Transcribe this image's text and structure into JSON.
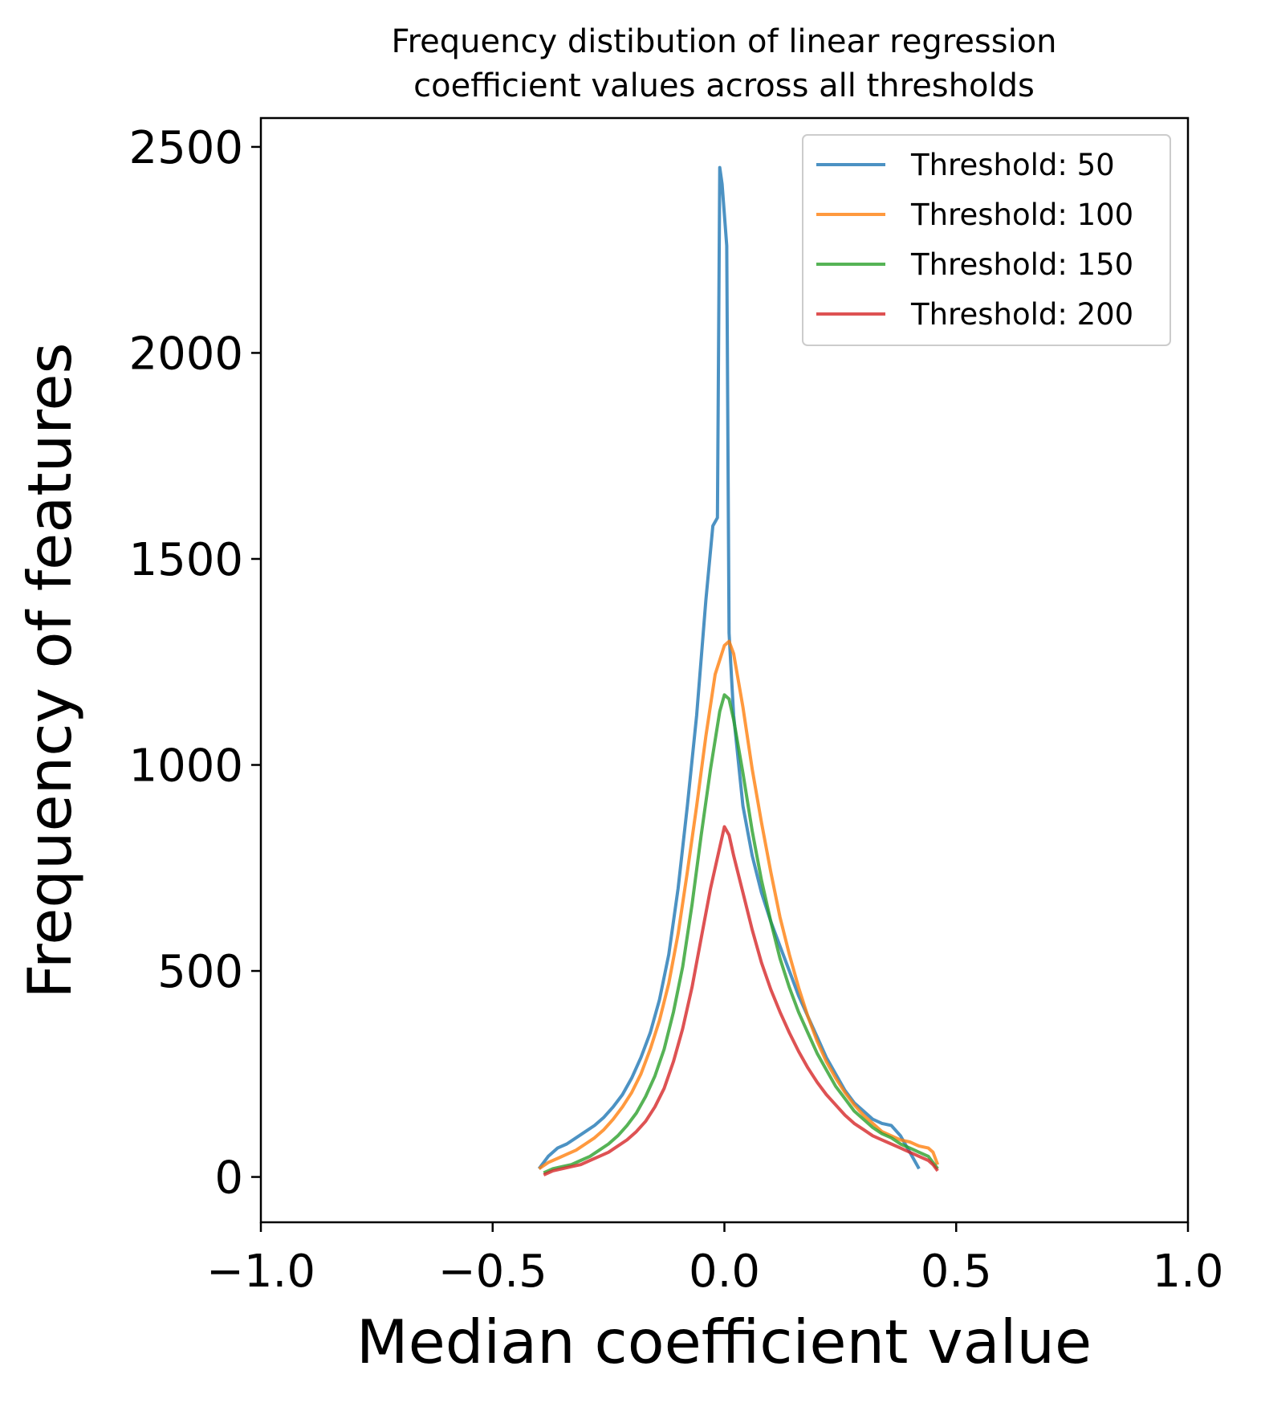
{
  "chart_data": {
    "type": "line",
    "title": [
      "Frequency distibution of linear regression",
      "coefficient values across all thresholds"
    ],
    "xlabel": "Median coefficient value",
    "ylabel": "Frequency of features",
    "xlim": [
      -1.0,
      1.0
    ],
    "ylim": [
      -110,
      2570
    ],
    "xticks": [
      -1.0,
      -0.5,
      0.0,
      0.5,
      1.0
    ],
    "xtick_labels": [
      "−1.0",
      "−0.5",
      "0.0",
      "0.5",
      "1.0"
    ],
    "yticks": [
      0,
      500,
      1000,
      1500,
      2000,
      2500
    ],
    "ytick_labels": [
      "0",
      "500",
      "1000",
      "1500",
      "2000",
      "2500"
    ],
    "grid": false,
    "legend_position": "top-right",
    "series": [
      {
        "name": "Threshold: 50",
        "color": "#1f77b4",
        "points": [
          [
            -0.4,
            20
          ],
          [
            -0.38,
            50
          ],
          [
            -0.36,
            70
          ],
          [
            -0.34,
            80
          ],
          [
            -0.32,
            95
          ],
          [
            -0.3,
            110
          ],
          [
            -0.28,
            125
          ],
          [
            -0.26,
            145
          ],
          [
            -0.24,
            170
          ],
          [
            -0.22,
            200
          ],
          [
            -0.2,
            240
          ],
          [
            -0.18,
            290
          ],
          [
            -0.16,
            350
          ],
          [
            -0.14,
            430
          ],
          [
            -0.12,
            540
          ],
          [
            -0.1,
            700
          ],
          [
            -0.08,
            900
          ],
          [
            -0.06,
            1120
          ],
          [
            -0.04,
            1400
          ],
          [
            -0.025,
            1580
          ],
          [
            -0.015,
            1600
          ],
          [
            -0.01,
            2450
          ],
          [
            -0.005,
            2410
          ],
          [
            0.005,
            2260
          ],
          [
            0.01,
            1320
          ],
          [
            0.02,
            1120
          ],
          [
            0.04,
            900
          ],
          [
            0.06,
            780
          ],
          [
            0.08,
            690
          ],
          [
            0.1,
            620
          ],
          [
            0.12,
            560
          ],
          [
            0.14,
            500
          ],
          [
            0.16,
            440
          ],
          [
            0.18,
            390
          ],
          [
            0.2,
            340
          ],
          [
            0.22,
            290
          ],
          [
            0.24,
            250
          ],
          [
            0.26,
            210
          ],
          [
            0.28,
            180
          ],
          [
            0.3,
            160
          ],
          [
            0.32,
            140
          ],
          [
            0.34,
            130
          ],
          [
            0.36,
            125
          ],
          [
            0.38,
            100
          ],
          [
            0.4,
            60
          ],
          [
            0.42,
            20
          ]
        ]
      },
      {
        "name": "Threshold: 100",
        "color": "#ff7f0e",
        "points": [
          [
            -0.4,
            20
          ],
          [
            -0.38,
            35
          ],
          [
            -0.36,
            45
          ],
          [
            -0.34,
            55
          ],
          [
            -0.32,
            65
          ],
          [
            -0.3,
            80
          ],
          [
            -0.28,
            95
          ],
          [
            -0.26,
            115
          ],
          [
            -0.24,
            140
          ],
          [
            -0.22,
            170
          ],
          [
            -0.2,
            205
          ],
          [
            -0.18,
            250
          ],
          [
            -0.16,
            310
          ],
          [
            -0.14,
            380
          ],
          [
            -0.12,
            470
          ],
          [
            -0.1,
            590
          ],
          [
            -0.08,
            740
          ],
          [
            -0.06,
            900
          ],
          [
            -0.04,
            1070
          ],
          [
            -0.02,
            1220
          ],
          [
            0.0,
            1290
          ],
          [
            0.01,
            1300
          ],
          [
            0.02,
            1270
          ],
          [
            0.04,
            1140
          ],
          [
            0.06,
            990
          ],
          [
            0.08,
            860
          ],
          [
            0.1,
            740
          ],
          [
            0.12,
            630
          ],
          [
            0.14,
            540
          ],
          [
            0.16,
            460
          ],
          [
            0.18,
            390
          ],
          [
            0.2,
            330
          ],
          [
            0.22,
            280
          ],
          [
            0.24,
            240
          ],
          [
            0.26,
            205
          ],
          [
            0.28,
            175
          ],
          [
            0.3,
            150
          ],
          [
            0.32,
            130
          ],
          [
            0.34,
            110
          ],
          [
            0.36,
            100
          ],
          [
            0.38,
            90
          ],
          [
            0.4,
            85
          ],
          [
            0.42,
            75
          ],
          [
            0.44,
            70
          ],
          [
            0.45,
            60
          ],
          [
            0.46,
            30
          ]
        ]
      },
      {
        "name": "Threshold: 150",
        "color": "#2ca02c",
        "points": [
          [
            -0.39,
            10
          ],
          [
            -0.37,
            20
          ],
          [
            -0.35,
            25
          ],
          [
            -0.33,
            30
          ],
          [
            -0.31,
            40
          ],
          [
            -0.29,
            50
          ],
          [
            -0.27,
            65
          ],
          [
            -0.25,
            80
          ],
          [
            -0.23,
            100
          ],
          [
            -0.21,
            125
          ],
          [
            -0.19,
            155
          ],
          [
            -0.17,
            195
          ],
          [
            -0.15,
            245
          ],
          [
            -0.13,
            310
          ],
          [
            -0.11,
            400
          ],
          [
            -0.09,
            510
          ],
          [
            -0.07,
            660
          ],
          [
            -0.05,
            830
          ],
          [
            -0.03,
            990
          ],
          [
            -0.01,
            1130
          ],
          [
            0.0,
            1170
          ],
          [
            0.01,
            1160
          ],
          [
            0.02,
            1110
          ],
          [
            0.04,
            980
          ],
          [
            0.06,
            840
          ],
          [
            0.08,
            720
          ],
          [
            0.1,
            620
          ],
          [
            0.12,
            530
          ],
          [
            0.14,
            460
          ],
          [
            0.16,
            400
          ],
          [
            0.18,
            350
          ],
          [
            0.2,
            300
          ],
          [
            0.22,
            260
          ],
          [
            0.24,
            220
          ],
          [
            0.26,
            190
          ],
          [
            0.28,
            160
          ],
          [
            0.3,
            140
          ],
          [
            0.32,
            120
          ],
          [
            0.34,
            105
          ],
          [
            0.36,
            95
          ],
          [
            0.38,
            80
          ],
          [
            0.4,
            70
          ],
          [
            0.42,
            60
          ],
          [
            0.44,
            50
          ],
          [
            0.46,
            20
          ]
        ]
      },
      {
        "name": "Threshold: 200",
        "color": "#d62728",
        "points": [
          [
            -0.39,
            5
          ],
          [
            -0.37,
            15
          ],
          [
            -0.35,
            20
          ],
          [
            -0.33,
            25
          ],
          [
            -0.31,
            30
          ],
          [
            -0.29,
            40
          ],
          [
            -0.27,
            50
          ],
          [
            -0.25,
            60
          ],
          [
            -0.23,
            75
          ],
          [
            -0.21,
            90
          ],
          [
            -0.19,
            110
          ],
          [
            -0.17,
            135
          ],
          [
            -0.15,
            170
          ],
          [
            -0.13,
            215
          ],
          [
            -0.11,
            280
          ],
          [
            -0.09,
            360
          ],
          [
            -0.07,
            460
          ],
          [
            -0.05,
            580
          ],
          [
            -0.03,
            700
          ],
          [
            -0.01,
            800
          ],
          [
            0.0,
            850
          ],
          [
            0.01,
            830
          ],
          [
            0.02,
            780
          ],
          [
            0.04,
            690
          ],
          [
            0.06,
            600
          ],
          [
            0.08,
            520
          ],
          [
            0.1,
            455
          ],
          [
            0.12,
            400
          ],
          [
            0.14,
            350
          ],
          [
            0.16,
            305
          ],
          [
            0.18,
            265
          ],
          [
            0.2,
            230
          ],
          [
            0.22,
            200
          ],
          [
            0.24,
            175
          ],
          [
            0.26,
            150
          ],
          [
            0.28,
            130
          ],
          [
            0.3,
            115
          ],
          [
            0.32,
            100
          ],
          [
            0.34,
            90
          ],
          [
            0.36,
            80
          ],
          [
            0.38,
            70
          ],
          [
            0.4,
            60
          ],
          [
            0.42,
            50
          ],
          [
            0.44,
            40
          ],
          [
            0.45,
            30
          ],
          [
            0.46,
            15
          ]
        ]
      }
    ]
  }
}
